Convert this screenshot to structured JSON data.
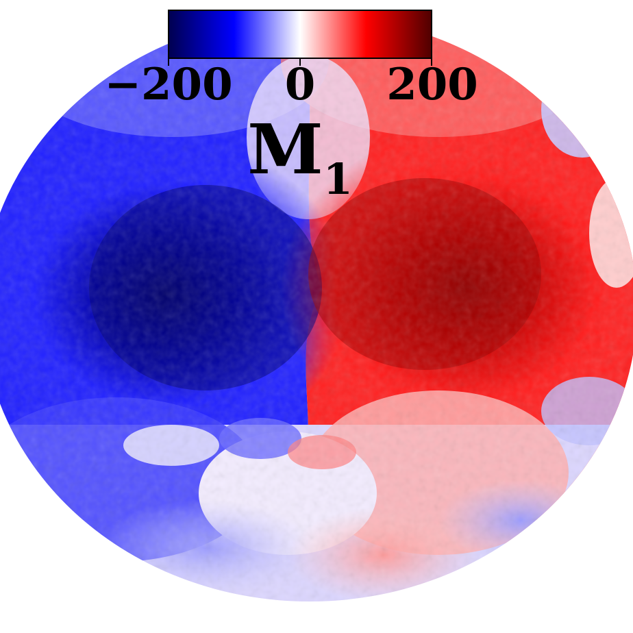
{
  "figure": {
    "variable_symbol": "M",
    "variable_subscript": "1",
    "colorbar": {
      "min": -200,
      "max": 200,
      "ticks": [
        "−200",
        "0",
        "200"
      ],
      "colors": {
        "low_dark": "#00004d",
        "low": "#0000ff",
        "mid": "#ffffff",
        "high": "#ff0000",
        "high_dark": "#4d0000"
      }
    }
  }
}
